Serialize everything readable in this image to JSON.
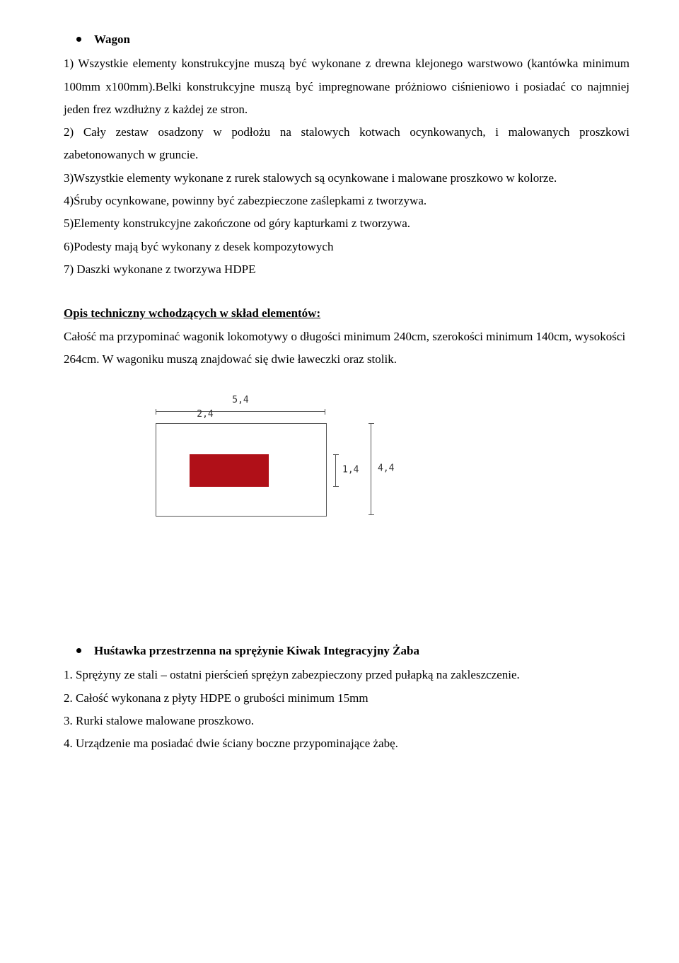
{
  "section1": {
    "title": "Wagon",
    "items": [
      "1) Wszystkie elementy konstrukcyjne muszą być wykonane z drewna klejonego warstwowo (kantówka minimum 100mm x100mm).Belki konstrukcyjne muszą być impregnowane próżniowo ciśnieniowo i posiadać co najmniej jeden frez wzdłużny z każdej ze stron.",
      "2) Cały zestaw osadzony w podłożu na stalowych kotwach ocynkowanych, i malowanych proszkowi zabetonowanych w gruncie.",
      "3)Wszystkie elementy wykonane z rurek stalowych są ocynkowane i malowane proszkowo w kolorze.",
      "4)Śruby ocynkowane, powinny być zabezpieczone zaślepkami z tworzywa.",
      "5)Elementy konstrukcyjne zakończone od góry kapturkami z tworzywa.",
      "6)Podesty mają być wykonany z desek kompozytowych",
      "7) Daszki wykonane z tworzywa HDPE"
    ]
  },
  "tech_heading": "Opis techniczny wchodzących w skład elementów:",
  "tech_body": "Całość ma przypominać wagonik lokomotywy o długości minimum 240cm, szerokości minimum 140cm, wysokości 264cm. W wagoniku muszą znajdować się dwie ławeczki oraz stolik.",
  "diagram": {
    "outer_w": "5,4",
    "inner_w": "2,4",
    "inner_h": "1,4",
    "outer_h": "4,4",
    "outer_border_color": "#555555",
    "inner_fill_color": "#b01018",
    "background": "#ffffff"
  },
  "section2": {
    "title": "Huśtawka przestrzenna  na sprężynie Kiwak Integracyjny Żaba",
    "items": [
      "1. Sprężyny ze stali – ostatni pierścień sprężyn zabezpieczony przed pułapką na zakleszczenie.",
      "2. Całość wykonana z płyty HDPE o grubości minimum 15mm",
      "3. Rurki stalowe malowane proszkowo.",
      "4. Urządzenie ma posiadać dwie ściany boczne przypominające żabę."
    ]
  }
}
